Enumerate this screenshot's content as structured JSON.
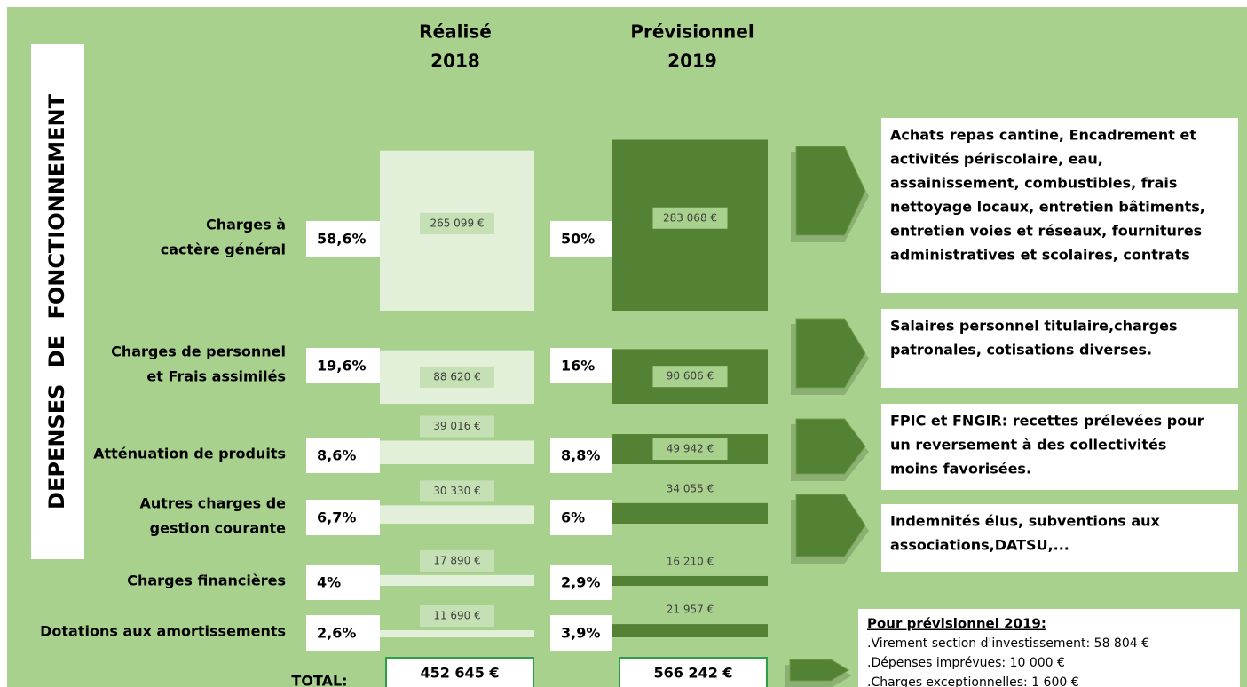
{
  "side_title": "DEPENSES DE FONCTIONNEMENT",
  "columns": [
    {
      "title": "Réalisé",
      "year": "2018"
    },
    {
      "title": "Prévisionnel",
      "year": "2019"
    }
  ],
  "rows": [
    {
      "label": [
        "Charges à",
        "cactère général"
      ],
      "realise": {
        "pct": "58,6%",
        "value": 265099,
        "value_label": "265 099 €"
      },
      "previsionnel": {
        "pct": "50%",
        "value": 283068,
        "value_label": "283 068 €"
      }
    },
    {
      "label": [
        "Charges de personnel",
        "et Frais assimilés"
      ],
      "realise": {
        "pct": "19,6%",
        "value": 88620,
        "value_label": "88 620 €"
      },
      "previsionnel": {
        "pct": "16%",
        "value": 90606,
        "value_label": "90 606 €"
      }
    },
    {
      "label": [
        "Atténuation de produits"
      ],
      "realise": {
        "pct": "8,6%",
        "value": 39016,
        "value_label": "39 016 €"
      },
      "previsionnel": {
        "pct": "8,8%",
        "value": 49942,
        "value_label": "49 942 €"
      }
    },
    {
      "label": [
        "Autres charges de",
        "gestion courante"
      ],
      "realise": {
        "pct": "6,7%",
        "value": 30330,
        "value_label": "30 330 €"
      },
      "previsionnel": {
        "pct": "6%",
        "value": 34055,
        "value_label": "34 055 €"
      }
    },
    {
      "label": [
        "Charges financières"
      ],
      "realise": {
        "pct": "4%",
        "value": 17890,
        "value_label": "17 890 €"
      },
      "previsionnel": {
        "pct": "2,9%",
        "value": 16210,
        "value_label": "16 210 €"
      }
    },
    {
      "label": [
        "Dotations aux amortissements"
      ],
      "realise": {
        "pct": "2,6%",
        "value": 11690,
        "value_label": "11 690 €"
      },
      "previsionnel": {
        "pct": "3,9%",
        "value": 21957,
        "value_label": "21 957 €"
      }
    }
  ],
  "notes": [
    {
      "lines": [
        "Achats repas cantine, Encadrement et",
        "activités périscolaire, eau,",
        "assainissement, combustibles, frais",
        "nettoyage locaux, entretien bâtiments,",
        "entretien voies et réseaux, fournitures",
        "administratives et scolaires, contrats"
      ]
    },
    {
      "lines": [
        "Salaires personnel titulaire,charges",
        "patronales, cotisations diverses."
      ]
    },
    {
      "lines": [
        "FPIC et FNGIR: recettes prélevées pour",
        "un reversement à des collectivités",
        "moins favorisées."
      ]
    },
    {
      "lines": [
        "Indemnités élus, subventions aux",
        "associations,DATSU,..."
      ]
    }
  ],
  "total": {
    "label": "TOTAL:",
    "realise": "452 645 €",
    "previsionnel": "566 242 €"
  },
  "forecast_note": {
    "title": "Pour prévisionnel 2019:",
    "lines": [
      ".Virement section d'investissement: 58 804 €",
      ".Dépenses imprévues: 10 000 €",
      ".Charges exceptionnelles: 1 600 €"
    ]
  }
}
